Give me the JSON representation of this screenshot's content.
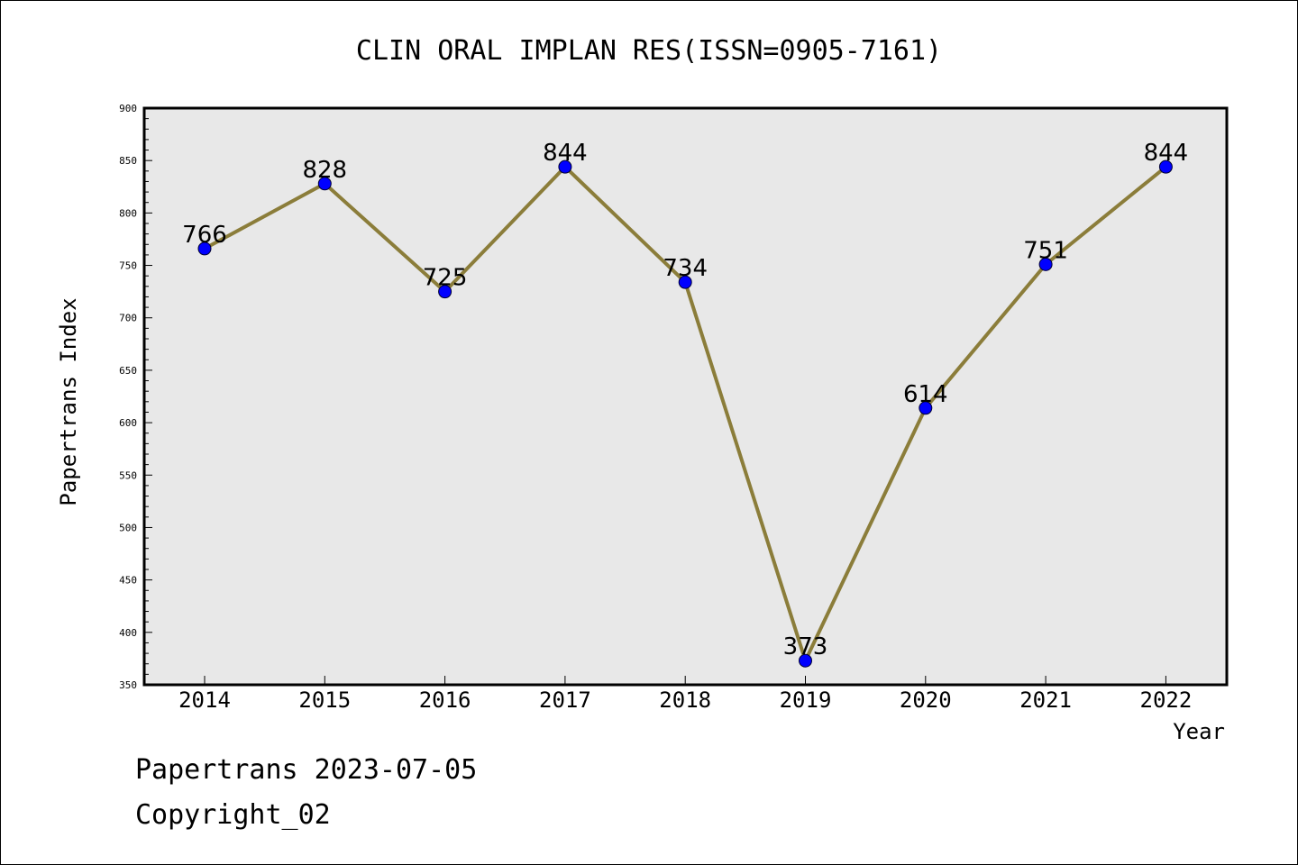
{
  "chart_data": {
    "type": "line",
    "title": "CLIN ORAL IMPLAN RES(ISSN=0905-7161)",
    "xlabel": "Year",
    "ylabel": "Papertrans Index",
    "categories": [
      "2014",
      "2015",
      "2016",
      "2017",
      "2018",
      "2019",
      "2020",
      "2021",
      "2022"
    ],
    "values": [
      766,
      828,
      725,
      844,
      734,
      373,
      614,
      751,
      844
    ],
    "ylim": [
      350,
      900
    ],
    "yticks": [
      350,
      400,
      450,
      500,
      550,
      600,
      650,
      700,
      750,
      800,
      850,
      900
    ],
    "grid": false,
    "plot_background": "#e8e8e8",
    "line_color": "#8b7d3a",
    "marker_color": "#0000ff"
  },
  "footer": {
    "line1": "Papertrans 2023-07-05",
    "line2": "Copyright_02"
  }
}
